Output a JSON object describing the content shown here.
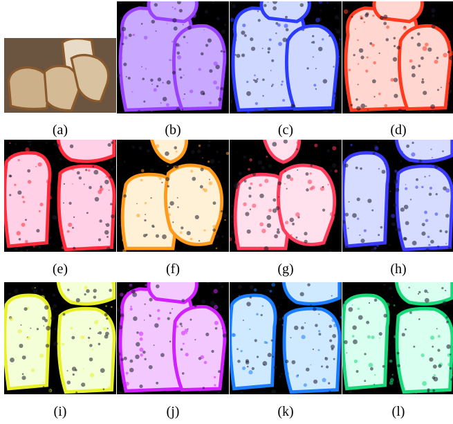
{
  "panels": [
    {
      "id": "a",
      "label": "(a)",
      "tint": "#b89a78",
      "edge": "#7a5a3c",
      "bg": "#6b5440",
      "variant": "photo"
    },
    {
      "id": "b",
      "label": "(b)",
      "tint": "#c9a8ff",
      "edge": "#9a40ff",
      "bg": "#000000",
      "variant": "A"
    },
    {
      "id": "c",
      "label": "(c)",
      "tint": "#cfd8ff",
      "edge": "#2b3cff",
      "bg": "#000000",
      "variant": "A"
    },
    {
      "id": "d",
      "label": "(d)",
      "tint": "#ffd6d0",
      "edge": "#ff3a1e",
      "bg": "#000000",
      "variant": "A"
    },
    {
      "id": "e",
      "label": "(e)",
      "tint": "#ffd0e6",
      "edge": "#ff2a3a",
      "bg": "#000000",
      "variant": "B"
    },
    {
      "id": "f",
      "label": "(f)",
      "tint": "#fff1d6",
      "edge": "#ff9a1a",
      "bg": "#000000",
      "variant": "C"
    },
    {
      "id": "g",
      "label": "(g)",
      "tint": "#ffe0ec",
      "edge": "#ff3a5a",
      "bg": "#000000",
      "variant": "C"
    },
    {
      "id": "h",
      "label": "(h)",
      "tint": "#d6dcff",
      "edge": "#3a3aff",
      "bg": "#000000",
      "variant": "B"
    },
    {
      "id": "i",
      "label": "(i)",
      "tint": "#f4ffd8",
      "edge": "#e8f02a",
      "bg": "#000000",
      "variant": "B"
    },
    {
      "id": "j",
      "label": "(j)",
      "tint": "#f2c8ff",
      "edge": "#d020ff",
      "bg": "#000000",
      "variant": "A"
    },
    {
      "id": "k",
      "label": "(k)",
      "tint": "#cfeaff",
      "edge": "#1a7cff",
      "bg": "#000000",
      "variant": "B"
    },
    {
      "id": "l",
      "label": "(l)",
      "tint": "#d8fff0",
      "edge": "#18d87a",
      "bg": "#000000",
      "variant": "B"
    }
  ]
}
